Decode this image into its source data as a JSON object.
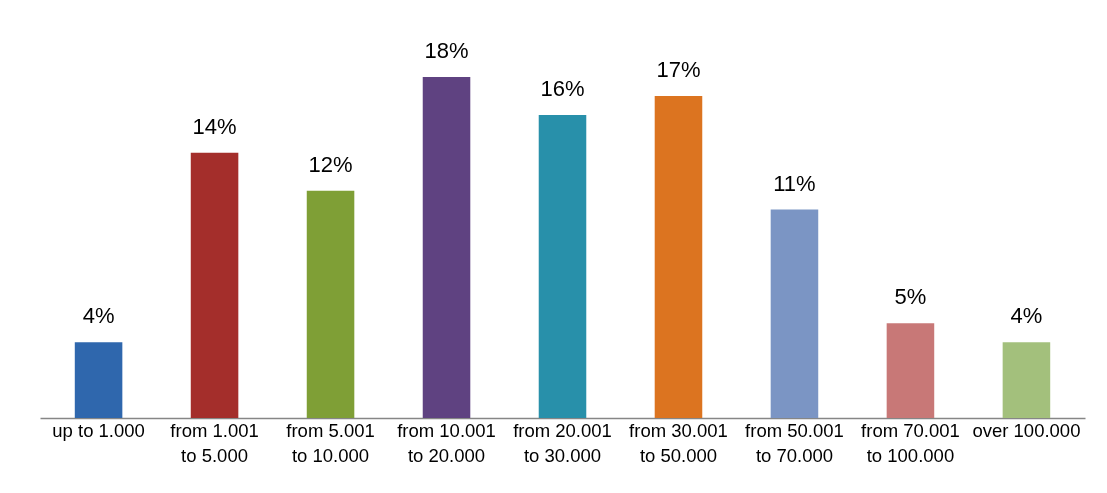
{
  "chart_data": {
    "type": "bar",
    "categories": [
      "up to 1.000",
      "from 1.001 to 5.000",
      "from 5.001 to 10.000",
      "from 10.001 to 20.000",
      "from 20.001 to 30.000",
      "from 30.001 to 50.000",
      "from 50.001 to 70.000",
      "from 70.001 to 100.000",
      "over 100.000"
    ],
    "values": [
      4,
      14,
      12,
      18,
      16,
      17,
      11,
      5,
      4
    ],
    "colors": [
      "#2f67ad",
      "#a42e2b",
      "#7f9f36",
      "#5f4281",
      "#2890aa",
      "#dc7420",
      "#7b95c4",
      "#c87877",
      "#a3c07c"
    ],
    "value_labels": [
      "4%",
      "14%",
      "12%",
      "18%",
      "16%",
      "17%",
      "11%",
      "5%",
      "4%"
    ],
    "tick_labels": "x"
  }
}
